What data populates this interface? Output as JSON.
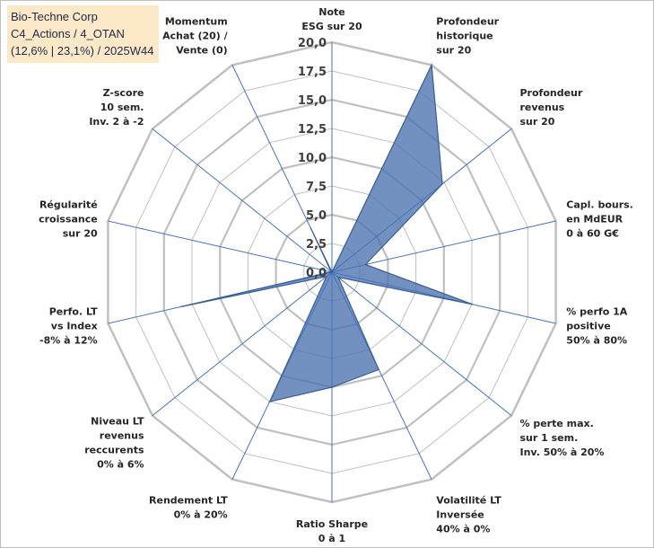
{
  "header": {
    "company": "Bio-Techne Corp",
    "category": "C4_Actions / 4_OTAN",
    "stats": "(12,6% | 23,1%) / 2025W44"
  },
  "chart_data": {
    "type": "radar",
    "rmax": 20,
    "rmin": 0,
    "ticks": [
      "0,0",
      "2,5",
      "5,0",
      "7,5",
      "10,0",
      "12,5",
      "15,0",
      "17,5",
      "20,0"
    ],
    "tick_values": [
      0,
      2.5,
      5,
      7.5,
      10,
      12.5,
      15,
      17.5,
      20
    ],
    "fill_color": "#4a72b0",
    "axis_color": "#4472c4",
    "grid_color": "#c0c0c0",
    "axes": [
      {
        "label": [
          "Note",
          "ESG sur 20"
        ],
        "value": 0
      },
      {
        "label": [
          "Profondeur",
          "historique",
          "sur 20"
        ],
        "value": 20
      },
      {
        "label": [
          "Profondeur",
          "revenus",
          "sur 20"
        ],
        "value": 12.3
      },
      {
        "label": [
          "Capl. bours.",
          "en MdEUR",
          "0 à 60 G€"
        ],
        "value": 3.0
      },
      {
        "label": [
          "% perfo 1A",
          "positive",
          "50% à 80%"
        ],
        "value": 12.6
      },
      {
        "label": [
          "% perte max.",
          "sur 1 sem.",
          "Inv. 50% à 20%"
        ],
        "value": 0.7
      },
      {
        "label": [
          "Volatilité LT",
          "Inversée",
          "40% à 0%"
        ],
        "value": 9.4
      },
      {
        "label": [
          "Ratio Sharpe",
          "0 à 1"
        ],
        "value": 10.0
      },
      {
        "label": [
          "Rendement LT",
          "0% à 20%"
        ],
        "value": 12.5
      },
      {
        "label": [
          "Niveau LT",
          "revenus",
          "reccurents",
          "0% à 6%"
        ],
        "value": 0.6
      },
      {
        "label": [
          "Perfo. LT",
          "vs Index",
          "-8% à 12%"
        ],
        "value": 13.5
      },
      {
        "label": [
          "Régularité",
          "croissance",
          "sur 20"
        ],
        "value": 0.1
      },
      {
        "label": [
          "Z-score",
          "10 sem.",
          "Inv. 2 à -2"
        ],
        "value": 0.1
      },
      {
        "label": [
          "Momentum",
          "Achat (20) /",
          "Vente (0)"
        ],
        "value": 4.3
      }
    ]
  }
}
